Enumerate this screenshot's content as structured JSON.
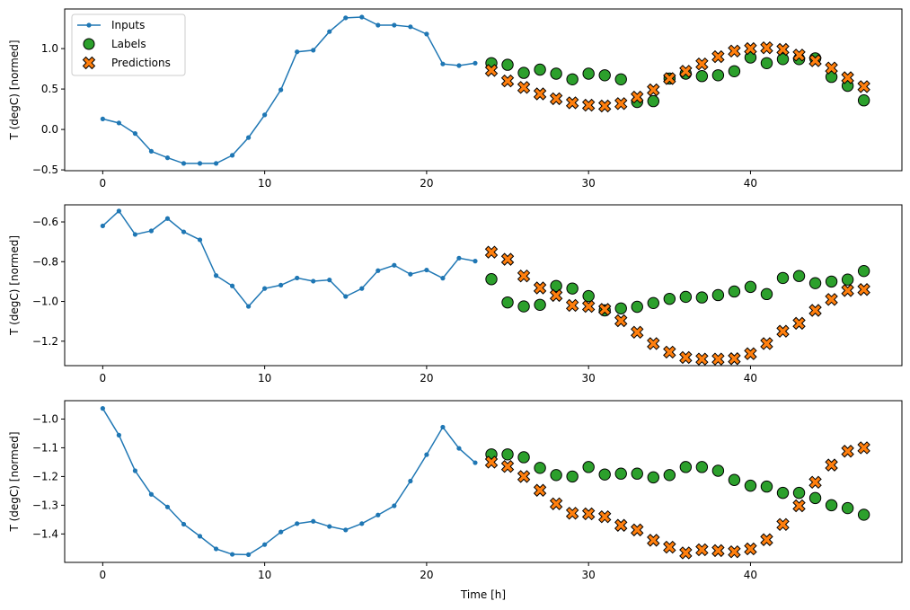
{
  "colors": {
    "inputs": "#1f77b4",
    "labels": "#2ca02c",
    "predictions": "#ff7f0e",
    "edge": "#000000"
  },
  "legend": {
    "placement": "top-left",
    "inputs": "Inputs",
    "labels": "Labels",
    "predictions": "Predictions"
  },
  "chart_data": [
    {
      "type": "line",
      "ylabel": "T (degC) [normed]",
      "xlabel": "",
      "xlim": [
        -2.35,
        49.35
      ],
      "ylim": [
        -0.51,
        1.49
      ],
      "xticks": [
        0,
        10,
        20,
        30,
        40
      ],
      "xtick_labels": [
        "0",
        "10",
        "20",
        "30",
        "40"
      ],
      "yticks": [
        -0.5,
        0.0,
        0.5,
        1.0
      ],
      "ytick_labels": [
        "−0.5",
        "0.0",
        "0.5",
        "1.0"
      ],
      "inputs": {
        "x_start": 0,
        "values": [
          0.13,
          0.08,
          -0.05,
          -0.27,
          -0.35,
          -0.42,
          -0.42,
          -0.42,
          -0.32,
          -0.1,
          0.18,
          0.49,
          0.96,
          0.98,
          1.21,
          1.38,
          1.39,
          1.29,
          1.29,
          1.27,
          1.18,
          0.81,
          0.79,
          0.82
        ]
      },
      "labels": {
        "x_start": 24,
        "values": [
          0.82,
          0.8,
          0.7,
          0.74,
          0.69,
          0.62,
          0.69,
          0.67,
          0.62,
          0.34,
          0.35,
          0.63,
          0.69,
          0.66,
          0.67,
          0.72,
          0.89,
          0.82,
          0.87,
          0.87,
          0.88,
          0.65,
          0.54,
          0.36
        ]
      },
      "predictions": {
        "x_start": 24,
        "values": [
          0.73,
          0.6,
          0.52,
          0.44,
          0.38,
          0.33,
          0.3,
          0.29,
          0.32,
          0.4,
          0.49,
          0.63,
          0.72,
          0.81,
          0.9,
          0.97,
          1.0,
          1.01,
          0.99,
          0.92,
          0.85,
          0.76,
          0.64,
          0.53
        ]
      }
    },
    {
      "type": "line",
      "ylabel": "T (degC) [normed]",
      "xlabel": "",
      "xlim": [
        -2.35,
        49.35
      ],
      "ylim": [
        -1.323,
        -0.514
      ],
      "xticks": [
        0,
        10,
        20,
        30,
        40
      ],
      "xtick_labels": [
        "0",
        "10",
        "20",
        "30",
        "40"
      ],
      "yticks": [
        -1.2,
        -1.0,
        -0.8,
        -0.6
      ],
      "ytick_labels": [
        "−1.2",
        "−1.0",
        "−0.8",
        "−0.6"
      ],
      "inputs": {
        "x_start": 0,
        "values": [
          -0.62,
          -0.545,
          -0.663,
          -0.645,
          -0.583,
          -0.65,
          -0.69,
          -0.87,
          -0.922,
          -1.025,
          -0.935,
          -0.918,
          -0.882,
          -0.898,
          -0.892,
          -0.975,
          -0.935,
          -0.845,
          -0.818,
          -0.863,
          -0.842,
          -0.883,
          -0.782,
          -0.797
        ]
      },
      "labels": {
        "x_start": 24,
        "values": [
          -0.888,
          -1.005,
          -1.025,
          -1.017,
          -0.922,
          -0.935,
          -0.973,
          -1.045,
          -1.035,
          -1.027,
          -1.008,
          -0.987,
          -0.977,
          -0.98,
          -0.968,
          -0.95,
          -0.927,
          -0.963,
          -0.882,
          -0.872,
          -0.908,
          -0.9,
          -0.89,
          -0.847
        ]
      },
      "predictions": {
        "x_start": 24,
        "values": [
          -0.752,
          -0.788,
          -0.872,
          -0.932,
          -0.97,
          -1.02,
          -1.025,
          -1.04,
          -1.097,
          -1.155,
          -1.212,
          -1.255,
          -1.282,
          -1.29,
          -1.29,
          -1.288,
          -1.263,
          -1.212,
          -1.15,
          -1.11,
          -1.045,
          -0.99,
          -0.945,
          -0.94
        ]
      }
    },
    {
      "type": "line",
      "ylabel": "T (degC) [normed]",
      "xlabel": "Time [h]",
      "xlim": [
        -2.35,
        49.35
      ],
      "ylim": [
        -1.499,
        -0.936
      ],
      "xticks": [
        0,
        10,
        20,
        30,
        40
      ],
      "xtick_labels": [
        "0",
        "10",
        "20",
        "30",
        "40"
      ],
      "yticks": [
        -1.4,
        -1.3,
        -1.2,
        -1.1,
        -1.0
      ],
      "ytick_labels": [
        "−1.4",
        "−1.3",
        "−1.2",
        "−1.1",
        "−1.0"
      ],
      "inputs": {
        "x_start": 0,
        "values": [
          -0.963,
          -1.056,
          -1.18,
          -1.262,
          -1.306,
          -1.366,
          -1.408,
          -1.452,
          -1.471,
          -1.472,
          -1.437,
          -1.393,
          -1.364,
          -1.356,
          -1.374,
          -1.386,
          -1.364,
          -1.334,
          -1.302,
          -1.216,
          -1.124,
          -1.028,
          -1.102,
          -1.152
        ]
      },
      "labels": {
        "x_start": 24,
        "values": [
          -1.123,
          -1.123,
          -1.133,
          -1.17,
          -1.195,
          -1.2,
          -1.167,
          -1.193,
          -1.19,
          -1.19,
          -1.203,
          -1.195,
          -1.167,
          -1.167,
          -1.18,
          -1.212,
          -1.232,
          -1.235,
          -1.257,
          -1.257,
          -1.275,
          -1.3,
          -1.31,
          -1.333
        ]
      },
      "predictions": {
        "x_start": 24,
        "values": [
          -1.15,
          -1.165,
          -1.2,
          -1.248,
          -1.295,
          -1.328,
          -1.33,
          -1.34,
          -1.37,
          -1.386,
          -1.422,
          -1.446,
          -1.466,
          -1.455,
          -1.458,
          -1.462,
          -1.452,
          -1.42,
          -1.367,
          -1.302,
          -1.22,
          -1.16,
          -1.112,
          -1.1
        ]
      }
    }
  ]
}
